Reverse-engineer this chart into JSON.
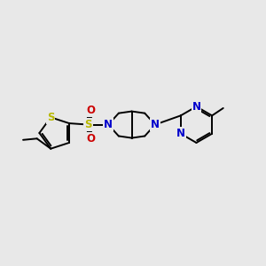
{
  "bg_color": "#e8e8e8",
  "bond_color": "#000000",
  "bond_lw": 1.4,
  "S_color": "#b8b800",
  "N_color": "#0000cc",
  "O_color": "#cc0000",
  "font_size": 8.5,
  "fig_width": 3.0,
  "fig_height": 3.0,
  "xlim": [
    0,
    10
  ],
  "ylim": [
    2.5,
    7.5
  ]
}
